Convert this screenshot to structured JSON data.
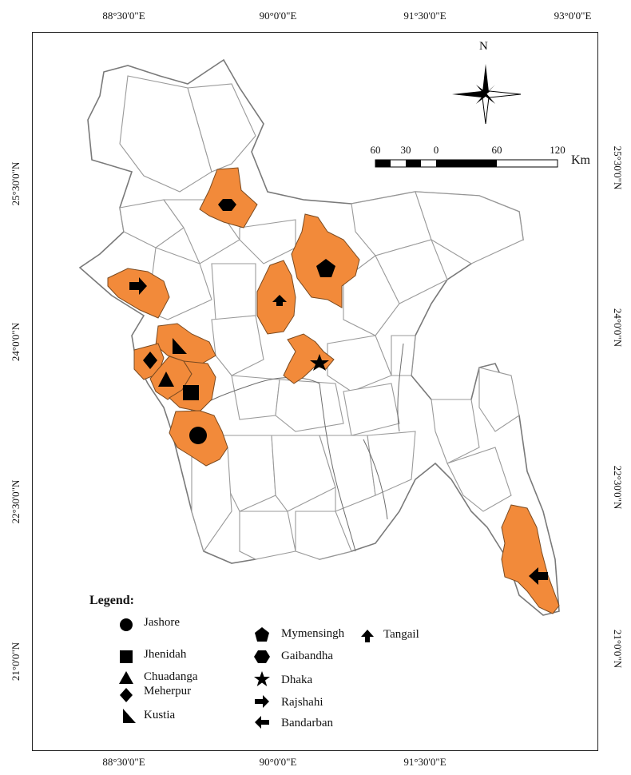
{
  "grid": {
    "top": [
      "88°30'0\"E",
      "90°0'0\"E",
      "91°30'0\"E",
      "93°0'0\"E"
    ],
    "bottom": [
      "88°30'0\"E",
      "90°0'0\"E",
      "91°30'0\"E"
    ],
    "left": [
      "25°30'0\"N",
      "24°0'0\"N",
      "22°30'0\"N",
      "21°0'0\"N"
    ],
    "right": [
      "25°30'0\"N",
      "24°0'0\"N",
      "22°30'0\"N",
      "21°0'0\"N"
    ]
  },
  "north": {
    "label": "N"
  },
  "scale": {
    "ticks": [
      "60",
      "30",
      "0",
      "60",
      "120"
    ],
    "unit": "Km"
  },
  "legend": {
    "title": "Legend:",
    "items": [
      {
        "symbol": "circle-icon",
        "label": "Jashore"
      },
      {
        "symbol": "square-icon",
        "label": "Jhenidah"
      },
      {
        "symbol": "triangle-icon",
        "label": "Chuadanga"
      },
      {
        "symbol": "diamond-icon",
        "label": "Meherpur"
      },
      {
        "symbol": "right-triangle-icon",
        "label": "Kustia"
      },
      {
        "symbol": "pentagon-icon",
        "label": "Mymensingh"
      },
      {
        "symbol": "hexagon-icon",
        "label": "Gaibandha"
      },
      {
        "symbol": "star-icon",
        "label": "Dhaka"
      },
      {
        "symbol": "arrow-right-icon",
        "label": "Rajshahi"
      },
      {
        "symbol": "arrow-left-icon",
        "label": "Bandarban"
      },
      {
        "symbol": "arrow-up-icon",
        "label": "Tangail"
      }
    ]
  },
  "colors": {
    "highlight": "#f28a3a",
    "district_outline": "#9a9a9a",
    "frame": "#222222"
  }
}
